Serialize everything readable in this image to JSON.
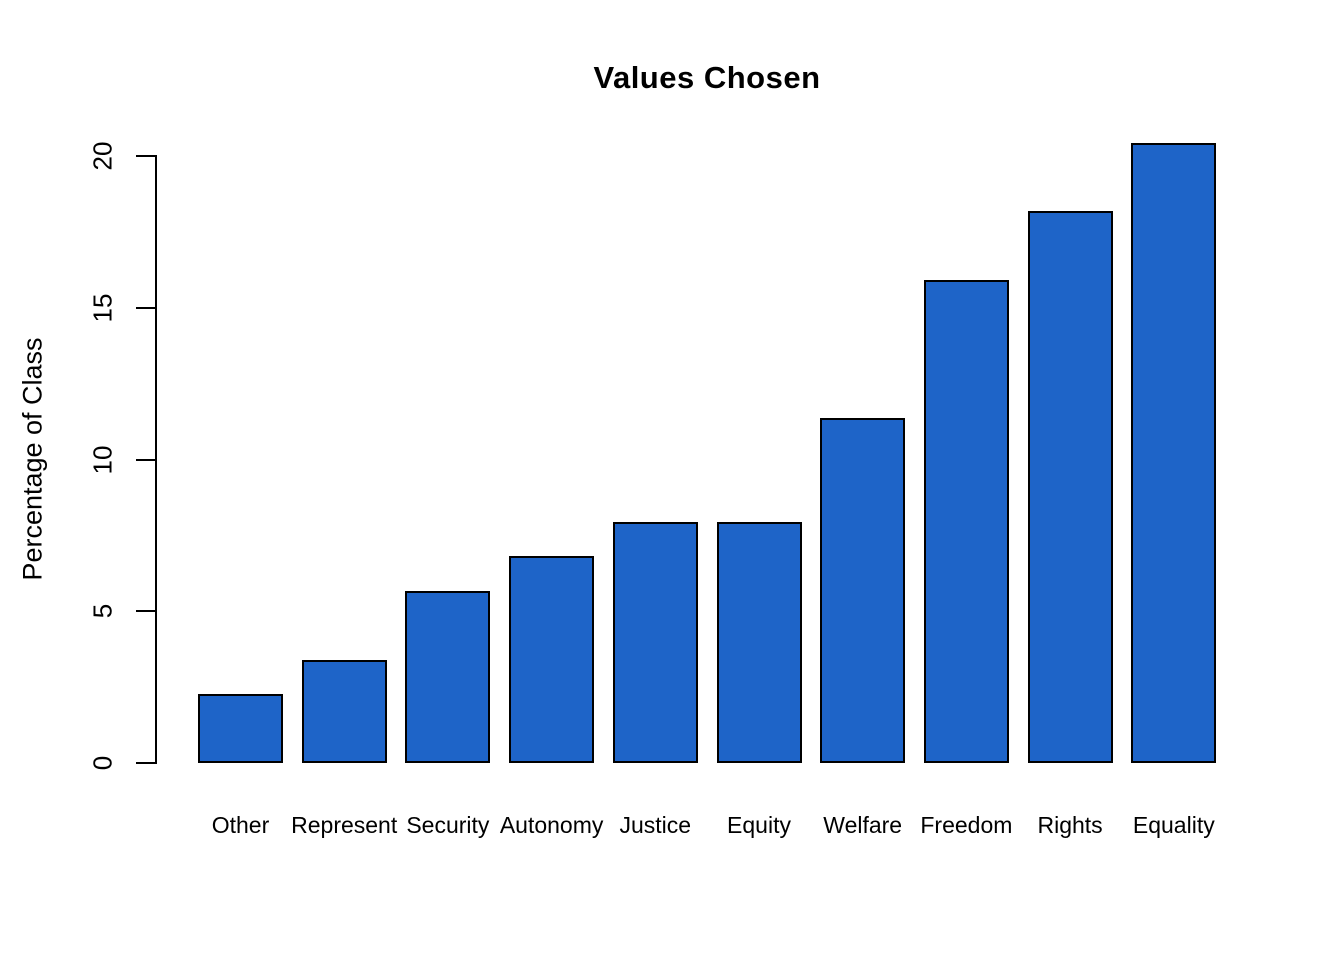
{
  "chart_data": {
    "type": "bar",
    "title": "Values Chosen",
    "xlabel": "",
    "ylabel": "Percentage of Class",
    "categories": [
      "Other",
      "Represent",
      "Security",
      "Autonomy",
      "Justice",
      "Equity",
      "Welfare",
      "Freedom",
      "Rights",
      "Equality"
    ],
    "values": [
      2.27,
      3.41,
      5.68,
      6.82,
      7.95,
      7.95,
      11.36,
      15.91,
      18.18,
      20.45
    ],
    "yticks": [
      0,
      5,
      10,
      15,
      20
    ],
    "ylim": [
      0,
      20.45
    ],
    "grid": false,
    "legend_position": "none",
    "bar_color": "#1E64C8",
    "bar_border_color": "#000000",
    "axis_color": "#000000",
    "text_color": "#000000",
    "background_color": "#FFFFFF"
  }
}
